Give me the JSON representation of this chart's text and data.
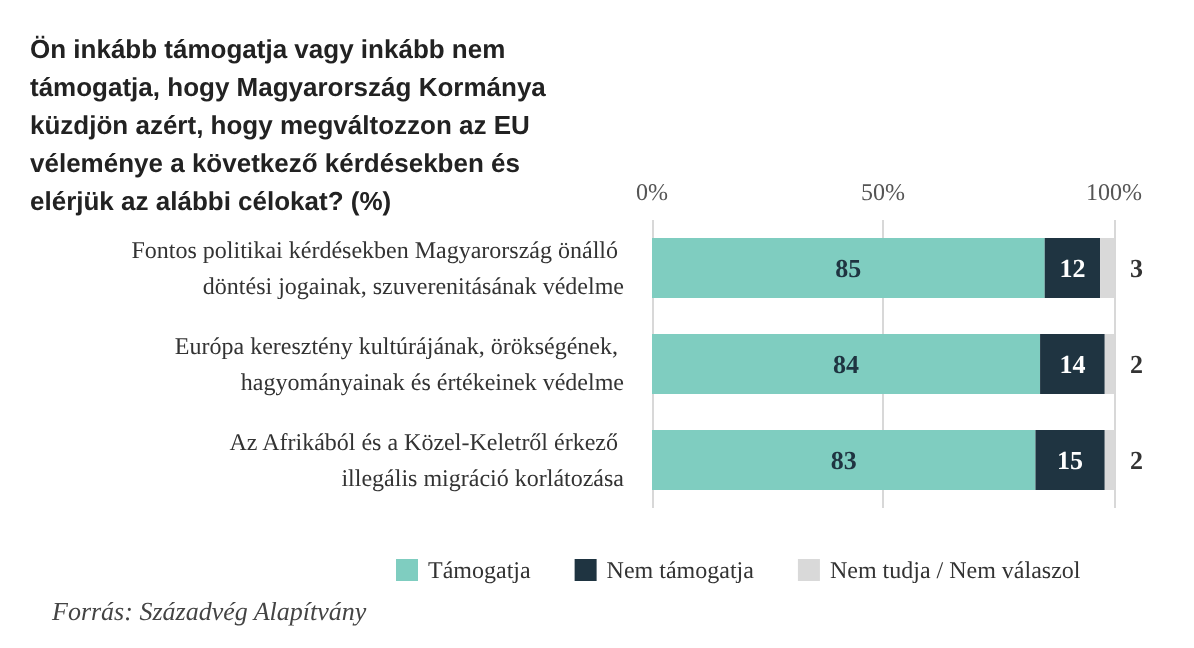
{
  "chart_data": {
    "type": "bar",
    "orientation": "horizontal",
    "stacked": true,
    "title": "Ön inkább támogatja vagy inkább nem támogatja, hogy Magyarország Kormánya küzdjön azért, hogy megváltozzon az EU véleménye a következő kérdésekben és elérjük az alábbi célokat? (%)",
    "categories": [
      "Fontos politikai kérdésekben Magyarország önálló döntési jogainak, szuverenitásának védelme",
      "Európa keresztény kultúrájának, örökségének, hagyományainak és értékeinek védelme",
      "Az Afrikából és a Közel-Keletről érkező illegális migráció korlátozása"
    ],
    "series": [
      {
        "name": "Támogatja",
        "color": "#7fcdc0",
        "values": [
          85,
          84,
          83
        ]
      },
      {
        "name": "Nem támogatja",
        "color": "#1f3441",
        "values": [
          12,
          14,
          15
        ]
      },
      {
        "name": "Nem tudja / Nem válaszol",
        "color": "#d9d9d9",
        "values": [
          3,
          2,
          2
        ]
      }
    ],
    "xlim": [
      0,
      100
    ],
    "xticks": [
      {
        "value": 0,
        "label": "0%"
      },
      {
        "value": 50,
        "label": "50%"
      },
      {
        "value": 100,
        "label": "100%"
      }
    ],
    "grid": "x",
    "legend": "bottom",
    "data_labels": true,
    "annotations": [
      "Forrás: Századvég Alapítvány"
    ]
  }
}
